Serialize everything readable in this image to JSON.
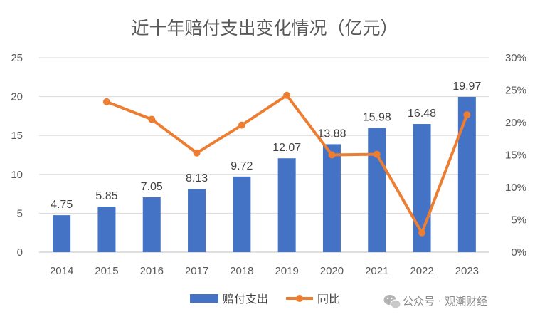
{
  "chart_data": {
    "type": "bar",
    "title": "近十年赔付支出变化情况（亿元）",
    "categories": [
      "2014",
      "2015",
      "2016",
      "2017",
      "2018",
      "2019",
      "2020",
      "2021",
      "2022",
      "2023"
    ],
    "series": [
      {
        "name": "赔付支出",
        "type": "bar",
        "axis": "left",
        "color": "#4472C4",
        "values": [
          4.75,
          5.85,
          7.05,
          8.13,
          9.72,
          12.07,
          13.88,
          15.98,
          16.48,
          19.97
        ],
        "labels": [
          "4.75",
          "5.85",
          "7.05",
          "8.13",
          "9.72",
          "12.07",
          "13.88",
          "15.98",
          "16.48",
          "19.97"
        ]
      },
      {
        "name": "同比",
        "type": "line",
        "axis": "right",
        "color": "#ED7D31",
        "values": [
          null,
          23.2,
          20.5,
          15.3,
          19.6,
          24.2,
          15.0,
          15.1,
          3.0,
          21.2
        ]
      }
    ],
    "y_left": {
      "ylim": [
        0,
        25
      ],
      "ticks": [
        "0",
        "5",
        "10",
        "15",
        "20",
        "25"
      ]
    },
    "y_right": {
      "ylim": [
        0,
        30
      ],
      "ticks": [
        "0%",
        "5%",
        "10%",
        "15%",
        "20%",
        "25%",
        "30%"
      ]
    },
    "grid": true,
    "legend": "bottom"
  },
  "watermark": {
    "text": "公众号 · 观潮财经",
    "icon": "wechat-icon"
  }
}
